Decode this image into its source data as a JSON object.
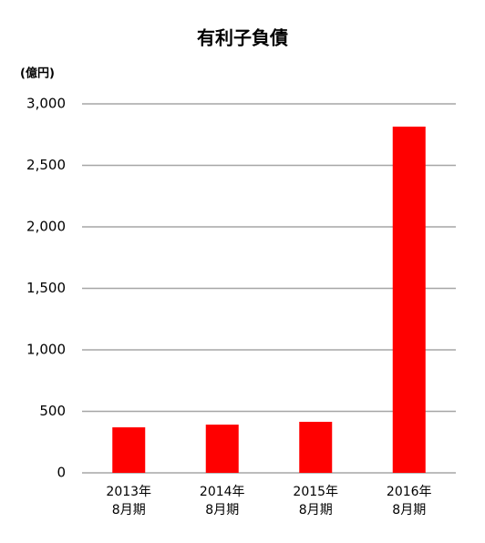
{
  "chart_data": {
    "type": "bar",
    "title": "有利子負債",
    "y_unit_label": "(億円)",
    "categories": [
      [
        "2013年",
        "8月期"
      ],
      [
        "2014年",
        "8月期"
      ],
      [
        "2015年",
        "8月期"
      ],
      [
        "2016年",
        "8月期"
      ]
    ],
    "values": [
      370,
      392,
      415,
      2815
    ],
    "color": "#ff0000",
    "ylim": [
      0,
      3000
    ],
    "yticks": [
      0,
      500,
      {
        "value": 1000,
        "label": "1,000"
      },
      {
        "value": 1500,
        "label": "1,500"
      },
      {
        "value": 2000,
        "label": "2,000"
      },
      {
        "value": 2500,
        "label": "2,500"
      },
      {
        "value": 3000,
        "label": "3,000"
      }
    ],
    "grid": true
  }
}
